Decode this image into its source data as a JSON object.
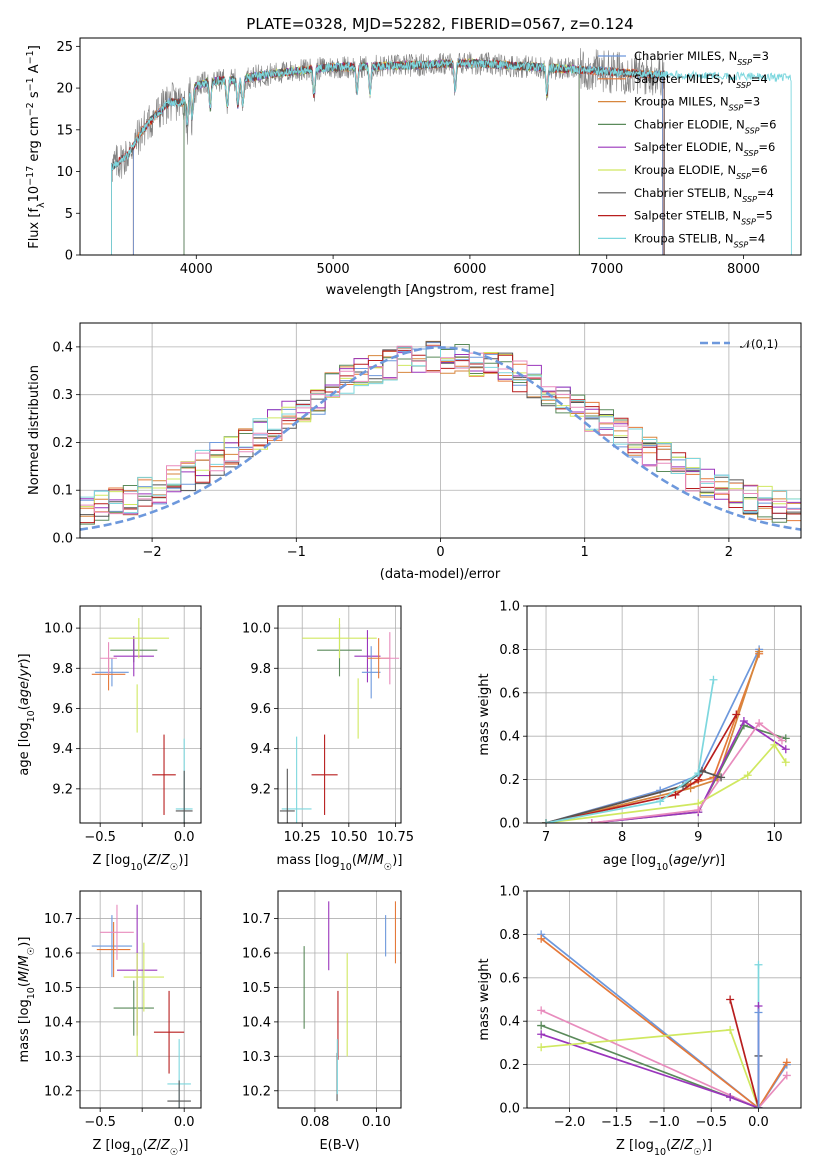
{
  "colors": {
    "Chabrier MILES": "#6d98dc",
    "Salpeter MILES": "#e5793a",
    "Kroupa MILES": "#d7863d",
    "Chabrier ELODIE": "#5a8a5a",
    "Salpeter ELODIE": "#9a35bc",
    "Kroupa ELODIE": "#d0e860",
    "Chabrier STELIB": "#555555",
    "Salpeter STELIB": "#b81e1e",
    "Kroupa STELIB": "#7dd7de",
    "pink": "#e88cbd",
    "normal": "#6d98dc"
  },
  "chart_data": [
    {
      "id": "spectrum",
      "type": "line",
      "title": "PLATE=0328, MJD=52282, FIBERID=0567, z=0.124",
      "xlabel": "wavelength [Angstrom, rest frame]",
      "ylabel": "Flux [fλ10⁻¹⁷ erg cm⁻² s⁻¹ A⁻¹]",
      "xlim": [
        3150,
        8420
      ],
      "ylim": [
        0,
        26
      ],
      "xticks": [
        4000,
        5000,
        6000,
        7000,
        8000
      ],
      "yticks": [
        0,
        5,
        10,
        15,
        20,
        25
      ],
      "legend": "top-right",
      "continuum": {
        "x": [
          3380,
          3500,
          3600,
          3700,
          3800,
          3900,
          4000,
          4100,
          4300,
          4500,
          4700,
          5000,
          5500,
          6000,
          6500,
          7000,
          7300,
          7500,
          8000,
          8350
        ],
        "y": [
          10.5,
          12.0,
          14.8,
          16.7,
          18.3,
          18.3,
          20.3,
          20.8,
          21.0,
          21.6,
          22.0,
          22.5,
          22.7,
          23.0,
          22.5,
          22.0,
          21.6,
          21.6,
          21.4,
          21.2
        ]
      },
      "series": [
        {
          "name": "Chabrier MILES, N_SSP=3",
          "start": 3540,
          "end": 7410
        },
        {
          "name": "Salpeter MILES, N_SSP=4",
          "start": 3540,
          "end": 7410
        },
        {
          "name": "Kroupa MILES, N_SSP=3",
          "start": 3540,
          "end": 7410
        },
        {
          "name": "Chabrier ELODIE, N_SSP=6",
          "start": 3910,
          "end": 6800
        },
        {
          "name": "Salpeter ELODIE, N_SSP=6",
          "start": 3910,
          "end": 6800
        },
        {
          "name": "Kroupa ELODIE, N_SSP=6",
          "start": 3910,
          "end": 6800
        },
        {
          "name": "Chabrier STELIB, N_SSP=4",
          "start": 3380,
          "end": 7420
        },
        {
          "name": "Salpeter STELIB, N_SSP=5",
          "start": 3380,
          "end": 7420
        },
        {
          "name": "Kroupa STELIB, N_SSP=4",
          "start": 3380,
          "end": 8350
        }
      ]
    },
    {
      "id": "residuals",
      "type": "line",
      "xlabel": "(data-model)/error",
      "ylabel": "Normed distribution",
      "xlim": [
        -2.5,
        2.5
      ],
      "ylim": [
        0,
        0.45
      ],
      "xticks": [
        -2,
        -1,
        0,
        1,
        2
      ],
      "yticks": [
        0.0,
        0.1,
        0.2,
        0.3,
        0.4
      ],
      "legend": "top-right",
      "reference": {
        "name": "𝒩(0,1)",
        "mean": 0,
        "sigma": 1
      },
      "histogram_bin_width": 0.1
    },
    {
      "id": "age-vs-Z",
      "type": "scatter",
      "xlabel": "Z [log10(Z/Z☉)]",
      "ylabel": "age [log10(age/yr)]",
      "xlim": [
        -0.62,
        0.1
      ],
      "ylim": [
        9.03,
        10.11
      ],
      "xticks": [
        -0.5,
        -0.25,
        0.0
      ],
      "xticklabels": [
        "−0.5",
        "",
        "0.0"
      ],
      "yticks": [
        9.2,
        9.4,
        9.6,
        9.8,
        10.0
      ],
      "points": [
        {
          "model": "Chabrier MILES",
          "x": -0.43,
          "xerr": 0.1,
          "y": 9.78,
          "yerr": 0.07
        },
        {
          "model": "Salpeter MILES",
          "x": -0.45,
          "xerr": 0.1,
          "y": 9.77,
          "yerr": 0.08
        },
        {
          "model": "pink",
          "x": -0.45,
          "xerr": 0.05,
          "y": 9.85,
          "yerr": 0.08
        },
        {
          "model": "Chabrier ELODIE",
          "x": -0.3,
          "xerr": 0.14,
          "y": 9.89,
          "yerr": 0.06
        },
        {
          "model": "Salpeter ELODIE",
          "x": -0.3,
          "xerr": 0.12,
          "y": 9.86,
          "yerr": 0.1
        },
        {
          "model": "Kroupa ELODIE",
          "x": -0.27,
          "xerr": 0.18,
          "y": 9.95,
          "yerr": 0.1
        },
        {
          "model": "Kroupa ELODIE",
          "x": -0.28,
          "xerr": 0.0,
          "y": 9.6,
          "yerr": 0.12
        },
        {
          "model": "Salpeter STELIB",
          "x": -0.12,
          "xerr": 0.07,
          "y": 9.27,
          "yerr": 0.2
        },
        {
          "model": "Kroupa STELIB",
          "x": 0.0,
          "xerr": 0.05,
          "y": 9.1,
          "yerr": 0.35
        },
        {
          "model": "Chabrier STELIB",
          "x": 0.0,
          "xerr": 0.05,
          "y": 9.09,
          "yerr": 0.2
        }
      ]
    },
    {
      "id": "age-vs-mass",
      "type": "scatter",
      "xlabel": "mass [log10(M/M☉)]",
      "xlim": [
        10.12,
        10.78
      ],
      "ylim": [
        9.03,
        10.11
      ],
      "xticks": [
        10.25,
        10.5,
        10.75
      ],
      "yticks": [
        9.2,
        9.4,
        9.6,
        9.8,
        10.0
      ],
      "points": [
        {
          "model": "Chabrier ELODIE",
          "x": 10.45,
          "xerr": 0.12,
          "y": 9.89,
          "yerr": 0.13
        },
        {
          "model": "Kroupa ELODIE",
          "x": 10.45,
          "xerr": 0.2,
          "y": 9.95,
          "yerr": 0.1
        },
        {
          "model": "Salpeter ELODIE",
          "x": 10.6,
          "xerr": 0.07,
          "y": 9.86,
          "yerr": 0.13
        },
        {
          "model": "Chabrier MILES",
          "x": 10.62,
          "xerr": 0.05,
          "y": 9.78,
          "yerr": 0.13
        },
        {
          "model": "Salpeter MILES",
          "x": 10.66,
          "xerr": 0.06,
          "y": 9.85,
          "yerr": 0.1
        },
        {
          "model": "pink",
          "x": 10.72,
          "xerr": 0.05,
          "y": 9.85,
          "yerr": 0.13
        },
        {
          "model": "Kroupa ELODIE",
          "x": 10.55,
          "xerr": 0.0,
          "y": 9.6,
          "yerr": 0.15
        },
        {
          "model": "Salpeter STELIB",
          "x": 10.37,
          "xerr": 0.07,
          "y": 9.27,
          "yerr": 0.2
        },
        {
          "model": "Kroupa STELIB",
          "x": 10.22,
          "xerr": 0.08,
          "y": 9.1,
          "yerr": 0.36
        },
        {
          "model": "Chabrier STELIB",
          "x": 10.17,
          "xerr": 0.04,
          "y": 9.09,
          "yerr": 0.21
        }
      ]
    },
    {
      "id": "weights-vs-age",
      "type": "line",
      "xlabel": "age [log10(age/yr)]",
      "ylabel": "mass weight",
      "xlim": [
        6.75,
        10.35
      ],
      "ylim": [
        0,
        1
      ],
      "xticks": [
        7,
        8,
        9,
        10
      ],
      "yticks": [
        0.0,
        0.2,
        0.4,
        0.6,
        0.8,
        1.0
      ],
      "series": [
        {
          "model": "Chabrier MILES",
          "x": [
            7.0,
            8.5,
            9.0,
            9.8
          ],
          "y": [
            0.0,
            0.15,
            0.22,
            0.8
          ]
        },
        {
          "model": "Salpeter MILES",
          "x": [
            7.0,
            8.9,
            9.2,
            9.8
          ],
          "y": [
            0.0,
            0.18,
            0.21,
            0.78
          ]
        },
        {
          "model": "Kroupa MILES",
          "x": [
            7.0,
            8.9,
            9.25,
            9.8
          ],
          "y": [
            0.0,
            0.16,
            0.2,
            0.79
          ]
        },
        {
          "model": "Chabrier ELODIE",
          "x": [
            7.6,
            9.0,
            9.6,
            10.15
          ],
          "y": [
            0.0,
            0.05,
            0.45,
            0.39
          ]
        },
        {
          "model": "Salpeter ELODIE",
          "x": [
            7.6,
            9.0,
            9.6,
            10.15
          ],
          "y": [
            0.0,
            0.05,
            0.47,
            0.34
          ]
        },
        {
          "model": "Kroupa ELODIE",
          "x": [
            7.0,
            9.0,
            9.65,
            10.0,
            10.15
          ],
          "y": [
            0.0,
            0.09,
            0.22,
            0.36,
            0.28
          ]
        },
        {
          "model": "pink",
          "x": [
            7.6,
            9.0,
            9.8,
            10.1
          ],
          "y": [
            0.0,
            0.06,
            0.46,
            0.38
          ]
        },
        {
          "model": "Salpeter STELIB",
          "x": [
            7.0,
            8.7,
            9.0,
            9.5
          ],
          "y": [
            0.0,
            0.13,
            0.2,
            0.5
          ]
        },
        {
          "model": "Chabrier STELIB",
          "x": [
            7.0,
            8.8,
            9.05,
            9.3
          ],
          "y": [
            0.0,
            0.17,
            0.24,
            0.21
          ]
        },
        {
          "model": "Kroupa STELIB",
          "x": [
            7.0,
            8.5,
            9.0,
            9.2
          ],
          "y": [
            0.0,
            0.1,
            0.23,
            0.66
          ]
        }
      ]
    },
    {
      "id": "mass-vs-Z",
      "type": "scatter",
      "xlabel": "Z [log10(Z/Z☉)]",
      "ylabel": "mass [log10(M/M☉)]",
      "xlim": [
        -0.62,
        0.1
      ],
      "ylim": [
        10.15,
        10.78
      ],
      "xticks": [
        -0.5,
        -0.25,
        0.0
      ],
      "xticklabels": [
        "−0.5",
        "",
        "0.0"
      ],
      "yticks": [
        10.2,
        10.3,
        10.4,
        10.5,
        10.6,
        10.7
      ],
      "points": [
        {
          "model": "Chabrier MILES",
          "x": -0.43,
          "xerr": 0.12,
          "y": 10.62,
          "yerr": 0.09
        },
        {
          "model": "Salpeter MILES",
          "x": -0.42,
          "xerr": 0.1,
          "y": 10.61,
          "yerr": 0.08
        },
        {
          "model": "pink",
          "x": -0.4,
          "xerr": 0.1,
          "y": 10.66,
          "yerr": 0.08
        },
        {
          "model": "Salpeter ELODIE",
          "x": -0.28,
          "xerr": 0.12,
          "y": 10.55,
          "yerr": 0.19
        },
        {
          "model": "Chabrier ELODIE",
          "x": -0.3,
          "xerr": 0.12,
          "y": 10.44,
          "yerr": 0.08
        },
        {
          "model": "Kroupa ELODIE",
          "x": -0.24,
          "xerr": 0.12,
          "y": 10.53,
          "yerr": 0.1
        },
        {
          "model": "Kroupa ELODIE",
          "x": -0.28,
          "xerr": 0.0,
          "y": 10.45,
          "yerr": 0.15
        },
        {
          "model": "Salpeter STELIB",
          "x": -0.09,
          "xerr": 0.09,
          "y": 10.37,
          "yerr": 0.12
        },
        {
          "model": "Kroupa STELIB",
          "x": -0.03,
          "xerr": 0.07,
          "y": 10.22,
          "yerr": 0.13
        },
        {
          "model": "Chabrier STELIB",
          "x": -0.03,
          "xerr": 0.07,
          "y": 10.17,
          "yerr": 0.06
        }
      ]
    },
    {
      "id": "mass-vs-EBV",
      "type": "scatter",
      "xlabel": "E(B-V)",
      "xlim": [
        0.068,
        0.108
      ],
      "ylim": [
        10.15,
        10.78
      ],
      "xticks": [
        0.08,
        0.1
      ],
      "yticks": [
        10.2,
        10.3,
        10.4,
        10.5,
        10.6,
        10.7
      ],
      "points": [
        {
          "model": "Chabrier ELODIE",
          "x": 0.0765,
          "y": 10.5,
          "yerr": 0.12
        },
        {
          "model": "Salpeter ELODIE",
          "x": 0.0845,
          "y": 10.65,
          "yerr": 0.1
        },
        {
          "model": "Salpeter STELIB",
          "x": 0.0875,
          "y": 10.39,
          "yerr": 0.1
        },
        {
          "model": "Chabrier STELIB",
          "x": 0.0872,
          "y": 10.24,
          "yerr": 0.07
        },
        {
          "model": "Kroupa STELIB",
          "x": 0.0873,
          "y": 10.27,
          "yerr": 0.08
        },
        {
          "model": "Kroupa ELODIE",
          "x": 0.0905,
          "y": 10.45,
          "yerr": 0.15
        },
        {
          "model": "Chabrier MILES",
          "x": 0.103,
          "y": 10.65,
          "yerr": 0.06
        },
        {
          "model": "Salpeter MILES",
          "x": 0.1062,
          "y": 10.66,
          "yerr": 0.09
        }
      ]
    },
    {
      "id": "weights-vs-Z",
      "type": "line",
      "xlabel": "Z [log10(Z/Z☉)]",
      "ylabel": "mass weight",
      "xlim": [
        -2.45,
        0.45
      ],
      "ylim": [
        0,
        1
      ],
      "xticks": [
        -2.0,
        -1.5,
        -1.0,
        -0.5,
        0.0
      ],
      "xticklabels": [
        "−2.0",
        "−1.5",
        "−1.0",
        "−0.5",
        "0.0"
      ],
      "yticks": [
        0.0,
        0.2,
        0.4,
        0.6,
        0.8,
        1.0
      ],
      "series": [
        {
          "model": "Chabrier MILES",
          "x": [
            -2.3,
            0.0,
            0.3
          ],
          "y": [
            0.8,
            0.0,
            0.2
          ]
        },
        {
          "model": "Salpeter MILES",
          "x": [
            -2.3,
            0.0,
            0.3
          ],
          "y": [
            0.78,
            0.0,
            0.21
          ]
        },
        {
          "model": "pink",
          "x": [
            -2.3,
            0.0,
            0.3
          ],
          "y": [
            0.45,
            0.0,
            0.15
          ]
        },
        {
          "model": "Chabrier ELODIE",
          "x": [
            -2.3,
            -0.3,
            0.0
          ],
          "y": [
            0.38,
            0.05,
            0.0
          ]
        },
        {
          "model": "Salpeter ELODIE",
          "x": [
            -2.3,
            -0.3,
            0.0
          ],
          "y": [
            0.34,
            0.05,
            0.0
          ]
        },
        {
          "model": "Kroupa ELODIE",
          "x": [
            -2.3,
            -0.3,
            0.0
          ],
          "y": [
            0.28,
            0.36,
            0.0
          ]
        },
        {
          "model": "Salpeter STELIB",
          "x": [
            -0.3,
            0.0
          ],
          "y": [
            0.5,
            0.0
          ]
        },
        {
          "model": "Kroupa STELIB",
          "x": [
            0.0,
            0.0
          ],
          "y": [
            0.0,
            0.66
          ]
        },
        {
          "model": "Chabrier STELIB",
          "x": [
            0.0,
            0.0
          ],
          "y": [
            0.0,
            0.24
          ]
        },
        {
          "model": "Salpeter ELODIE",
          "x": [
            0.0,
            0.0
          ],
          "y": [
            0.0,
            0.47
          ]
        },
        {
          "model": "Chabrier MILES",
          "x": [
            0.0,
            0.0
          ],
          "y": [
            0.0,
            0.44
          ]
        }
      ]
    }
  ]
}
